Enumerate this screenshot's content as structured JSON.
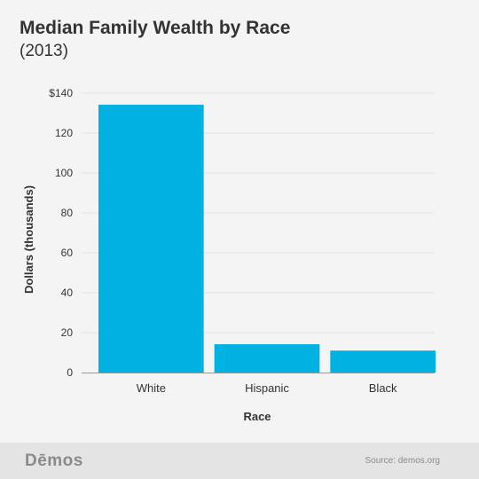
{
  "header": {
    "title": "Median Family Wealth by Race",
    "subtitle": "(2013)"
  },
  "chart_data": {
    "type": "bar",
    "categories": [
      "White",
      "Hispanic",
      "Black"
    ],
    "values": [
      134.2,
      14.2,
      11.0
    ],
    "xlabel": "Race",
    "ylabel": "Dollars (thousands)",
    "ylim": [
      0,
      140
    ],
    "yticks": [
      0,
      20,
      40,
      60,
      80,
      100,
      120,
      140
    ],
    "ytick_labels": [
      "0",
      "20",
      "40",
      "60",
      "80",
      "100",
      "120",
      "$140"
    ],
    "grid": true,
    "bar_color": "#00b2e2"
  },
  "footer": {
    "brand": "Dēmos",
    "source": "Source: demos.org"
  }
}
